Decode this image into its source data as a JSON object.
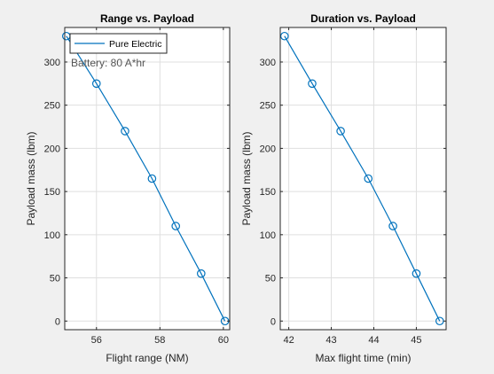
{
  "colors": {
    "figure_bg": "#f0f0f0",
    "axes_bg": "#ffffff",
    "axis_line": "#262626",
    "grid": "#dfdfdf",
    "series": "#0072bd"
  },
  "chart_data": [
    {
      "type": "line",
      "title": "Range vs. Payload",
      "xlabel": "Flight range (NM)",
      "ylabel": "Payload mass (lbm)",
      "xlim": [
        55,
        60.2
      ],
      "ylim": [
        -10,
        340
      ],
      "xticks": [
        56,
        58,
        60
      ],
      "yticks": [
        0,
        50,
        100,
        150,
        200,
        250,
        300
      ],
      "grid": true,
      "marker": "circle",
      "legend": {
        "location": "top-left",
        "entries": [
          "Pure Electric"
        ]
      },
      "annotations": [
        "Battery: 80 A*hr"
      ],
      "series": [
        {
          "name": "Pure Electric",
          "x": [
            55.05,
            56.0,
            56.9,
            57.75,
            58.5,
            59.3,
            60.05
          ],
          "y": [
            330,
            275,
            220,
            165,
            110,
            55,
            0
          ]
        }
      ]
    },
    {
      "type": "line",
      "title": "Duration vs. Payload",
      "xlabel": "Max flight time (min)",
      "ylabel": "Payload mass (lbm)",
      "xlim": [
        41.8,
        45.7
      ],
      "ylim": [
        -10,
        340
      ],
      "xticks": [
        42,
        43,
        44,
        45
      ],
      "yticks": [
        0,
        50,
        100,
        150,
        200,
        250,
        300
      ],
      "grid": true,
      "marker": "circle",
      "series": [
        {
          "x": [
            41.9,
            42.55,
            43.22,
            43.87,
            44.45,
            45.0,
            45.55
          ],
          "y": [
            330,
            275,
            220,
            165,
            110,
            55,
            0
          ]
        }
      ]
    }
  ]
}
